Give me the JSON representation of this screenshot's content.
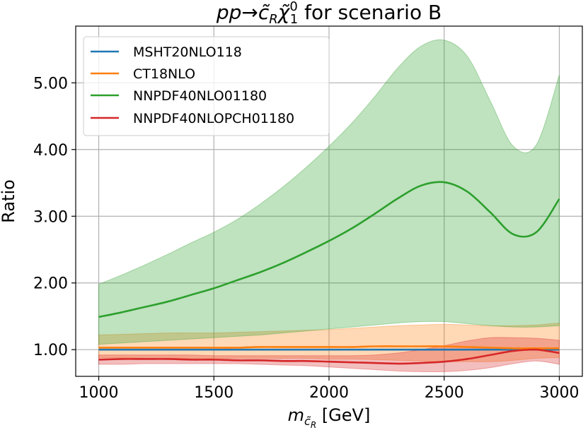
{
  "chart_data": {
    "type": "line",
    "title": "pp→c̃_Rχ̃₁⁰ for scenario B",
    "title_parts": {
      "process_prefix": "pp→",
      "squark": "c̃",
      "squark_sub": "R",
      "neutralino": "χ̃",
      "neutralino_sub": "1",
      "neutralino_sup": "0",
      "suffix": " for scenario B"
    },
    "xlabel": "m_{c̃_R} [GeV]",
    "xlabel_parts": {
      "symbol": "m",
      "sub": "c̃",
      "subsub": "R",
      "unit": " [GeV]"
    },
    "ylabel": "Ratio",
    "xlim": [
      900,
      3100
    ],
    "ylim": [
      0.6,
      5.85
    ],
    "xticks": [
      1000,
      1500,
      2000,
      2500,
      3000
    ],
    "xtick_labels": [
      "1000",
      "1500",
      "2000",
      "2500",
      "3000"
    ],
    "yticks": [
      1.0,
      2.0,
      3.0,
      4.0,
      5.0
    ],
    "ytick_labels": [
      "1.00",
      "2.00",
      "3.00",
      "4.00",
      "5.00"
    ],
    "grid": true,
    "legend_position": "top-left",
    "x": [
      1000,
      1100,
      1200,
      1300,
      1400,
      1500,
      1600,
      1700,
      1800,
      1900,
      2000,
      2100,
      2200,
      2300,
      2400,
      2500,
      2600,
      2700,
      2800,
      2900,
      3000
    ],
    "series": [
      {
        "name": "MSHT20NLO118",
        "color": "#1f77b4",
        "values": [
          1.0,
          1.0,
          1.0,
          1.0,
          1.0,
          1.0,
          1.0,
          1.0,
          1.0,
          1.0,
          1.0,
          1.0,
          1.0,
          1.0,
          1.0,
          1.0,
          1.0,
          1.0,
          1.0,
          1.0,
          1.0
        ],
        "band_upper": [
          1.0,
          1.0,
          1.0,
          1.0,
          1.0,
          1.0,
          1.0,
          1.0,
          1.0,
          1.0,
          1.0,
          1.0,
          1.0,
          1.0,
          1.0,
          1.0,
          1.0,
          1.0,
          1.0,
          1.0,
          1.0
        ],
        "band_lower": [
          1.0,
          1.0,
          1.0,
          1.0,
          1.0,
          1.0,
          1.0,
          1.0,
          1.0,
          1.0,
          1.0,
          1.0,
          1.0,
          1.0,
          1.0,
          1.0,
          1.0,
          1.0,
          1.0,
          1.0,
          1.0
        ]
      },
      {
        "name": "CT18NLO",
        "color": "#ff7f0e",
        "values": [
          1.03,
          1.03,
          1.03,
          1.03,
          1.03,
          1.03,
          1.03,
          1.04,
          1.04,
          1.04,
          1.04,
          1.04,
          1.05,
          1.05,
          1.05,
          1.05,
          1.04,
          1.03,
          1.02,
          1.02,
          1.02
        ],
        "band_upper": [
          1.22,
          1.23,
          1.24,
          1.25,
          1.25,
          1.25,
          1.26,
          1.27,
          1.28,
          1.29,
          1.3,
          1.32,
          1.34,
          1.36,
          1.37,
          1.38,
          1.37,
          1.36,
          1.36,
          1.37,
          1.4
        ],
        "band_lower": [
          0.88,
          0.88,
          0.87,
          0.87,
          0.87,
          0.87,
          0.87,
          0.87,
          0.87,
          0.87,
          0.86,
          0.86,
          0.85,
          0.84,
          0.83,
          0.82,
          0.82,
          0.82,
          0.84,
          0.87,
          0.88
        ]
      },
      {
        "name": "NNPDF40NLO01180",
        "color": "#2ca02c",
        "values": [
          1.49,
          1.56,
          1.64,
          1.72,
          1.82,
          1.92,
          2.04,
          2.16,
          2.3,
          2.46,
          2.63,
          2.82,
          3.04,
          3.27,
          3.46,
          3.51,
          3.37,
          3.06,
          2.73,
          2.76,
          3.26
        ],
        "band_upper": [
          1.98,
          2.12,
          2.27,
          2.43,
          2.6,
          2.76,
          2.95,
          3.18,
          3.44,
          3.73,
          4.05,
          4.4,
          4.8,
          5.23,
          5.55,
          5.64,
          5.4,
          4.73,
          4.05,
          4.07,
          5.12
        ],
        "band_lower": [
          1.08,
          1.1,
          1.12,
          1.14,
          1.16,
          1.18,
          1.2,
          1.22,
          1.25,
          1.28,
          1.31,
          1.34,
          1.37,
          1.4,
          1.42,
          1.42,
          1.39,
          1.36,
          1.34,
          1.34,
          1.36
        ]
      },
      {
        "name": "NNPDF40NLOPCH01180",
        "color": "#d62728",
        "values": [
          0.85,
          0.86,
          0.86,
          0.86,
          0.85,
          0.85,
          0.84,
          0.84,
          0.83,
          0.83,
          0.82,
          0.81,
          0.8,
          0.79,
          0.8,
          0.82,
          0.86,
          0.92,
          0.98,
          1.0,
          0.95
        ],
        "band_upper": [
          0.92,
          0.92,
          0.92,
          0.92,
          0.92,
          0.91,
          0.91,
          0.91,
          0.91,
          0.91,
          0.91,
          0.91,
          0.92,
          0.95,
          1.0,
          1.06,
          1.13,
          1.18,
          1.18,
          1.17,
          1.14
        ],
        "band_lower": [
          0.78,
          0.78,
          0.79,
          0.79,
          0.79,
          0.79,
          0.79,
          0.78,
          0.77,
          0.76,
          0.74,
          0.72,
          0.7,
          0.68,
          0.67,
          0.67,
          0.69,
          0.73,
          0.79,
          0.83,
          0.78
        ]
      }
    ]
  }
}
